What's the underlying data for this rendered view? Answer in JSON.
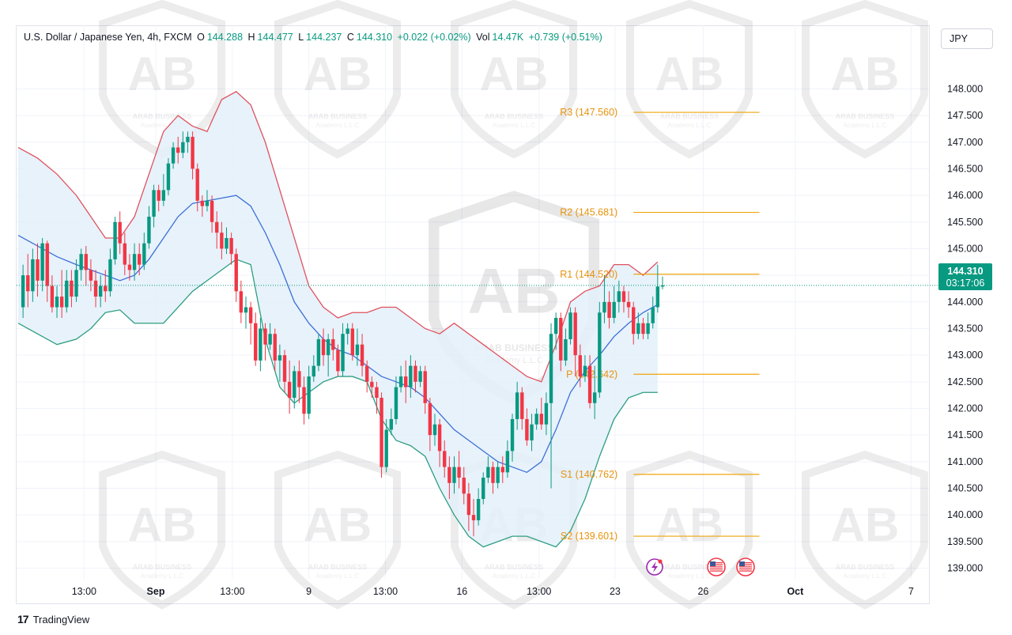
{
  "header": {
    "title": "U.S. Dollar / Japanese Yen, 4h, FXCM",
    "o_label": "O",
    "o_value": "144.288",
    "h_label": "H",
    "h_value": "144.477",
    "l_label": "L",
    "l_value": "144.237",
    "c_label": "C",
    "c_value": "144.310",
    "change": "+0.022 (+0.02%)",
    "vol_label": "Vol",
    "vol_value": "14.47K",
    "vol_change": "+0.739 (+0.51%)"
  },
  "currency_button": "JPY",
  "brand": {
    "name": "TradingView",
    "icon": "tradingview-logo-icon"
  },
  "watermark": {
    "line1": "ARAB BUSINESS",
    "line2": "Academy L.L.C",
    "icon": "ab-shield-logo-icon"
  },
  "price_badge": {
    "price": "144.310",
    "countdown": "03:17:06"
  },
  "event_icons": [
    "lightning-event-icon",
    "us-flag-event-icon",
    "us-flag-event-icon"
  ],
  "colors": {
    "up": "#089981",
    "down": "#f23645",
    "upper_band": "#e0525e",
    "lower_band": "#2e9e80",
    "mid_band": "#3d6fd6",
    "band_fill": "#e3f0fa",
    "pivot": "#f0a40a",
    "pivot_text": "#e8930c"
  },
  "chart_data": {
    "type": "candlestick",
    "symbol": "USDJPY",
    "timeframe": "4h",
    "ylim": [
      138.8,
      148.6
    ],
    "yticks": [
      "148.000",
      "147.500",
      "147.000",
      "146.500",
      "146.000",
      "145.500",
      "145.000",
      "144.500",
      "144.000",
      "143.500",
      "143.000",
      "142.500",
      "142.000",
      "141.500",
      "141.000",
      "140.500",
      "140.000",
      "139.500",
      "139.000"
    ],
    "x_range": [
      0,
      188
    ],
    "xticks": [
      {
        "label": "13:00",
        "x": 13.6
      },
      {
        "label": "Sep",
        "x": 28.4
      },
      {
        "label": "13:00",
        "x": 44.2
      },
      {
        "label": "9",
        "x": 60.0
      },
      {
        "label": "13:00",
        "x": 75.8
      },
      {
        "label": "16",
        "x": 91.6
      },
      {
        "label": "13:00",
        "x": 107.5
      },
      {
        "label": "23",
        "x": 123.2
      },
      {
        "label": "26",
        "x": 141.4
      },
      {
        "label": "Oct",
        "x": 160.4
      },
      {
        "label": "7",
        "x": 184.3
      }
    ],
    "pivots": [
      {
        "label": "R3 (147.560)",
        "value": 147.56
      },
      {
        "label": "R2 (145.681)",
        "value": 145.681
      },
      {
        "label": "R1 (144.520)",
        "value": 144.52
      },
      {
        "label": "P (142.642)",
        "value": 142.642
      },
      {
        "label": "S1 (140.762)",
        "value": 140.762
      },
      {
        "label": "S2 (139.601)",
        "value": 139.601
      }
    ],
    "pivot_x_range": [
      127,
      153
    ],
    "last_price": 144.31,
    "bands": {
      "x": [
        0,
        4,
        8,
        12,
        15,
        18,
        21,
        24,
        27,
        30,
        33,
        36,
        39,
        42,
        45,
        48,
        51,
        54,
        57,
        60,
        63,
        66,
        69,
        72,
        75,
        78,
        81,
        84,
        87,
        90,
        93,
        96,
        99,
        102,
        105,
        108,
        111,
        114,
        117,
        120,
        123,
        126,
        129,
        132
      ],
      "upper": [
        146.9,
        146.7,
        146.4,
        146.0,
        145.6,
        145.2,
        145.2,
        145.6,
        146.4,
        147.2,
        147.5,
        147.3,
        147.2,
        147.8,
        147.95,
        147.7,
        147.0,
        146.1,
        145.2,
        144.3,
        143.9,
        143.7,
        143.8,
        143.8,
        143.9,
        143.9,
        143.7,
        143.5,
        143.4,
        143.6,
        143.4,
        143.2,
        143.0,
        142.8,
        142.6,
        142.5,
        143.2,
        144.0,
        144.2,
        144.3,
        144.7,
        144.7,
        144.5,
        144.75
      ],
      "mid": [
        145.25,
        145.05,
        144.85,
        144.7,
        144.6,
        144.5,
        144.4,
        144.5,
        144.8,
        145.2,
        145.6,
        145.85,
        145.9,
        145.95,
        146.0,
        145.8,
        145.3,
        144.7,
        144.0,
        143.6,
        143.3,
        143.1,
        143.0,
        142.8,
        142.6,
        142.5,
        142.4,
        142.2,
        141.9,
        141.6,
        141.4,
        141.2,
        141.0,
        140.9,
        140.8,
        141.0,
        141.6,
        142.3,
        142.7,
        143.0,
        143.35,
        143.6,
        143.8,
        143.95
      ],
      "lower": [
        143.6,
        143.4,
        143.2,
        143.3,
        143.5,
        143.8,
        143.85,
        143.6,
        143.6,
        143.6,
        143.9,
        144.2,
        144.4,
        144.6,
        144.8,
        144.7,
        143.3,
        142.4,
        142.1,
        142.3,
        142.5,
        142.6,
        142.6,
        142.5,
        141.8,
        141.4,
        141.3,
        141.1,
        140.5,
        140.0,
        139.6,
        139.4,
        139.5,
        139.6,
        139.6,
        139.5,
        139.4,
        139.7,
        140.3,
        141.1,
        141.8,
        142.2,
        142.3,
        142.3
      ]
    },
    "candles": [
      [
        143.9,
        144.5,
        144.7,
        143.7
      ],
      [
        144.5,
        144.2,
        144.9,
        143.9
      ],
      [
        144.2,
        144.8,
        145.0,
        144.0
      ],
      [
        144.8,
        144.4,
        145.1,
        144.1
      ],
      [
        144.4,
        145.1,
        145.2,
        144.2
      ],
      [
        145.1,
        144.3,
        145.15,
        144.0
      ],
      [
        144.3,
        143.9,
        144.5,
        143.8
      ],
      [
        143.9,
        144.1,
        144.3,
        143.7
      ],
      [
        144.1,
        143.9,
        144.6,
        143.7
      ],
      [
        143.9,
        144.4,
        144.6,
        143.8
      ],
      [
        144.4,
        144.1,
        144.6,
        143.9
      ],
      [
        144.1,
        144.6,
        144.8,
        144.0
      ],
      [
        144.6,
        144.9,
        145.0,
        144.4
      ],
      [
        144.9,
        144.6,
        145.05,
        144.3
      ],
      [
        144.6,
        144.4,
        144.8,
        144.2
      ],
      [
        144.4,
        144.1,
        144.6,
        143.9
      ],
      [
        144.1,
        144.3,
        144.5,
        143.9
      ],
      [
        144.3,
        144.2,
        144.6,
        144.0
      ],
      [
        144.2,
        144.8,
        145.0,
        144.1
      ],
      [
        144.8,
        145.5,
        145.6,
        144.7
      ],
      [
        145.5,
        145.1,
        145.7,
        144.9
      ],
      [
        145.1,
        144.7,
        145.3,
        144.5
      ],
      [
        144.7,
        144.6,
        144.9,
        144.4
      ],
      [
        144.6,
        144.9,
        145.1,
        144.4
      ],
      [
        144.9,
        144.7,
        145.1,
        144.5
      ],
      [
        144.7,
        145.1,
        145.3,
        144.6
      ],
      [
        145.1,
        145.6,
        145.8,
        145.0
      ],
      [
        145.6,
        146.1,
        146.2,
        145.4
      ],
      [
        146.1,
        145.9,
        146.2,
        145.7
      ],
      [
        145.9,
        146.1,
        146.4,
        145.8
      ],
      [
        146.1,
        146.6,
        146.7,
        146.0
      ],
      [
        146.6,
        146.9,
        147.0,
        146.5
      ],
      [
        146.9,
        146.8,
        147.1,
        146.6
      ],
      [
        146.8,
        147.0,
        147.2,
        146.7
      ],
      [
        147.0,
        147.1,
        147.2,
        146.8
      ],
      [
        147.1,
        146.5,
        147.2,
        146.3
      ],
      [
        146.5,
        145.9,
        146.6,
        145.7
      ],
      [
        145.9,
        145.8,
        146.0,
        145.6
      ],
      [
        145.8,
        145.9,
        146.1,
        145.7
      ],
      [
        145.9,
        145.5,
        146.0,
        145.3
      ],
      [
        145.5,
        145.3,
        145.7,
        145.0
      ],
      [
        145.3,
        145.0,
        145.5,
        144.8
      ],
      [
        145.0,
        145.2,
        145.4,
        144.9
      ],
      [
        145.2,
        144.9,
        145.3,
        144.7
      ],
      [
        144.9,
        144.2,
        145.0,
        144.0
      ],
      [
        144.2,
        143.8,
        144.4,
        143.6
      ],
      [
        143.8,
        143.9,
        144.1,
        143.5
      ],
      [
        143.9,
        143.6,
        144.0,
        143.2
      ],
      [
        143.6,
        142.9,
        143.8,
        142.8
      ],
      [
        142.9,
        143.5,
        143.7,
        142.7
      ],
      [
        143.5,
        143.2,
        143.6,
        142.9
      ],
      [
        143.2,
        143.4,
        143.6,
        143.1
      ],
      [
        143.4,
        142.9,
        143.5,
        142.7
      ],
      [
        142.9,
        143.0,
        143.2,
        142.5
      ],
      [
        143.0,
        142.5,
        143.1,
        142.3
      ],
      [
        142.5,
        142.2,
        142.9,
        141.9
      ],
      [
        142.2,
        142.7,
        142.8,
        142.0
      ],
      [
        142.7,
        142.4,
        142.9,
        142.1
      ],
      [
        142.4,
        141.9,
        142.6,
        141.7
      ],
      [
        141.9,
        142.6,
        142.8,
        141.8
      ],
      [
        142.6,
        142.8,
        143.0,
        142.5
      ],
      [
        142.8,
        143.3,
        143.4,
        142.7
      ],
      [
        143.3,
        143.0,
        143.5,
        142.8
      ],
      [
        143.0,
        143.3,
        143.4,
        142.6
      ],
      [
        143.3,
        143.1,
        143.5,
        142.9
      ],
      [
        143.1,
        142.7,
        143.2,
        142.6
      ],
      [
        142.7,
        143.4,
        143.6,
        142.6
      ],
      [
        143.4,
        143.5,
        143.6,
        143.2
      ],
      [
        143.5,
        143.0,
        143.6,
        142.9
      ],
      [
        143.0,
        143.2,
        143.5,
        142.8
      ],
      [
        143.2,
        142.8,
        143.4,
        142.6
      ],
      [
        142.8,
        142.5,
        142.9,
        142.3
      ],
      [
        142.5,
        142.4,
        142.6,
        142.2
      ],
      [
        142.4,
        142.2,
        142.5,
        141.9
      ],
      [
        142.2,
        140.9,
        142.3,
        140.7
      ],
      [
        140.9,
        141.6,
        141.8,
        140.8
      ],
      [
        141.6,
        141.8,
        142.0,
        141.5
      ],
      [
        141.8,
        142.4,
        142.6,
        141.7
      ],
      [
        142.4,
        142.6,
        142.8,
        142.3
      ],
      [
        142.6,
        142.4,
        142.9,
        142.1
      ],
      [
        142.4,
        142.8,
        143.0,
        142.2
      ],
      [
        142.8,
        142.5,
        142.9,
        142.3
      ],
      [
        142.5,
        142.7,
        142.8,
        142.4
      ],
      [
        142.7,
        142.1,
        142.8,
        141.9
      ],
      [
        142.1,
        141.5,
        142.2,
        141.2
      ],
      [
        141.5,
        141.7,
        141.9,
        141.3
      ],
      [
        141.7,
        141.2,
        141.8,
        140.9
      ],
      [
        141.2,
        140.9,
        141.4,
        140.7
      ],
      [
        140.9,
        140.6,
        141.1,
        140.3
      ],
      [
        140.6,
        140.9,
        141.1,
        140.4
      ],
      [
        140.9,
        140.7,
        141.2,
        140.5
      ],
      [
        140.7,
        140.4,
        140.9,
        140.2
      ],
      [
        140.4,
        140.0,
        140.6,
        139.7
      ],
      [
        140.0,
        139.9,
        140.3,
        139.6
      ],
      [
        139.9,
        140.3,
        140.5,
        139.8
      ],
      [
        140.3,
        140.7,
        140.8,
        140.2
      ],
      [
        140.7,
        140.9,
        141.1,
        140.6
      ],
      [
        140.9,
        140.6,
        141.0,
        140.4
      ],
      [
        140.6,
        140.9,
        141.0,
        140.5
      ],
      [
        140.9,
        140.8,
        141.1,
        140.6
      ],
      [
        140.8,
        141.2,
        141.4,
        140.7
      ],
      [
        141.2,
        141.8,
        141.9,
        141.0
      ],
      [
        141.8,
        142.3,
        142.5,
        141.6
      ],
      [
        142.3,
        141.8,
        142.4,
        141.6
      ],
      [
        141.8,
        141.4,
        142.0,
        141.3
      ],
      [
        141.4,
        141.7,
        141.9,
        141.2
      ],
      [
        141.7,
        141.9,
        142.0,
        141.6
      ],
      [
        141.9,
        141.7,
        142.2,
        141.6
      ],
      [
        141.7,
        142.1,
        142.3,
        141.5
      ],
      [
        142.1,
        143.4,
        143.6,
        140.5
      ],
      [
        143.4,
        143.7,
        143.8,
        143.1
      ],
      [
        143.7,
        142.9,
        143.8,
        142.7
      ],
      [
        142.9,
        143.3,
        143.5,
        142.8
      ],
      [
        143.3,
        143.8,
        143.9,
        143.2
      ],
      [
        143.8,
        143.0,
        143.9,
        142.6
      ],
      [
        143.0,
        142.6,
        143.2,
        142.4
      ],
      [
        142.6,
        142.8,
        143.0,
        142.5
      ],
      [
        142.8,
        142.1,
        143.0,
        142.0
      ],
      [
        142.1,
        142.3,
        142.8,
        141.8
      ],
      [
        142.3,
        143.8,
        144.0,
        142.2
      ],
      [
        143.8,
        144.0,
        144.5,
        143.6
      ],
      [
        144.0,
        143.7,
        144.2,
        143.5
      ],
      [
        143.7,
        144.0,
        144.3,
        143.6
      ],
      [
        144.0,
        144.2,
        144.4,
        143.8
      ],
      [
        144.2,
        144.0,
        144.3,
        143.8
      ],
      [
        144.0,
        143.9,
        144.2,
        143.7
      ],
      [
        143.9,
        143.4,
        144.0,
        143.2
      ],
      [
        143.4,
        143.6,
        143.8,
        143.3
      ],
      [
        143.6,
        143.4,
        143.7,
        143.3
      ],
      [
        143.4,
        143.6,
        143.8,
        143.3
      ],
      [
        143.6,
        143.9,
        144.1,
        143.5
      ],
      [
        143.9,
        144.29,
        144.7,
        143.8
      ],
      [
        144.288,
        144.31,
        144.477,
        144.237
      ]
    ]
  }
}
